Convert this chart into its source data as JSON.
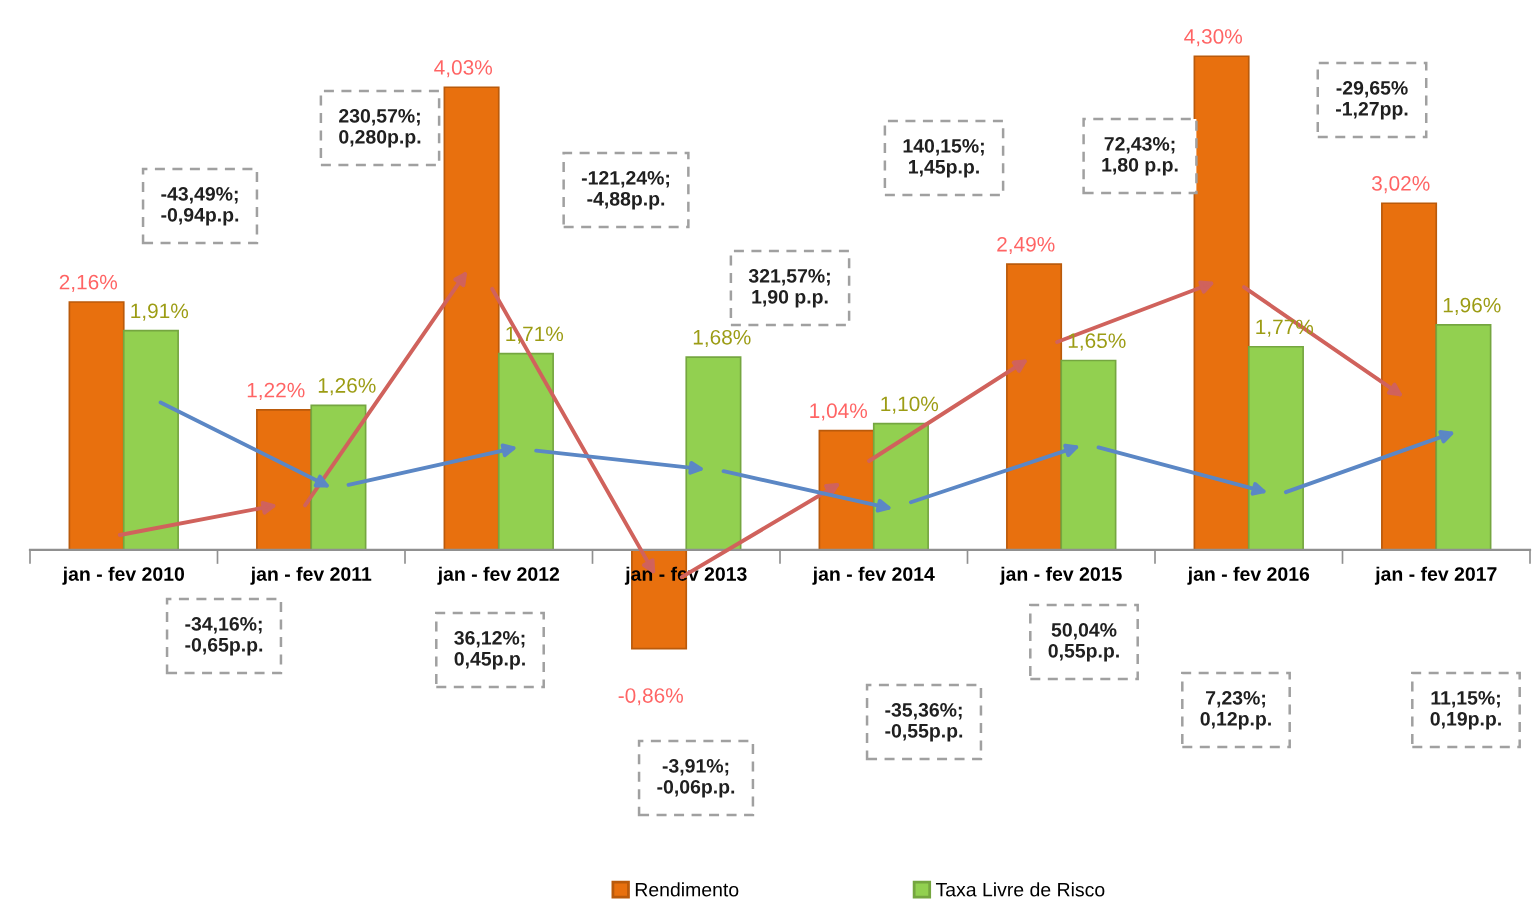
{
  "chart_data": {
    "type": "bar",
    "categories": [
      "jan - fev 2010",
      "jan - fev 2011",
      "jan - fev 2012",
      "jan - fev 2013",
      "jan - fev 2014",
      "jan - fev 2015",
      "jan - fev 2016",
      "jan - fev 2017"
    ],
    "series": [
      {
        "name": "Rendimento",
        "color": "#e8700e",
        "values": [
          2.16,
          1.22,
          4.03,
          -0.86,
          1.04,
          2.49,
          4.3,
          3.02
        ],
        "value_labels": [
          "2,16%",
          "1,22%",
          "4,03%",
          "-0,86%",
          "1,04%",
          "2,49%",
          "4,30%",
          "3,02%"
        ]
      },
      {
        "name": "Taxa Livre de Risco",
        "color": "#92d050",
        "values": [
          1.91,
          1.26,
          1.71,
          1.68,
          1.1,
          1.65,
          1.77,
          1.96
        ],
        "value_labels": [
          "1,91%",
          "1,26%",
          "1,71%",
          "1,68%",
          "1,10%",
          "1,65%",
          "1,77%",
          "1,96%"
        ]
      }
    ],
    "annotations": [
      "-43,49%;\n-0,94p.p.",
      "230,57%;\n0,280p.p.",
      "-121,24%;\n-4,88p.p.",
      "321,57%;\n1,90 p.p.",
      "140,15%;\n1,45p.p.",
      "72,43%;\n1,80 p.p.",
      "-29,65%\n-1,27pp.",
      "-34,16%;\n-0,65p.p.",
      "36,12%;\n0,45p.p.",
      "-3,91%;\n-0,06p.p.",
      "-35,36%;\n-0,55p.p.",
      "50,04%\n0,55p.p.",
      "7,23%;\n0,12p.p.",
      "11,15%;\n0,19p.p."
    ],
    "legend": "bottom"
  }
}
